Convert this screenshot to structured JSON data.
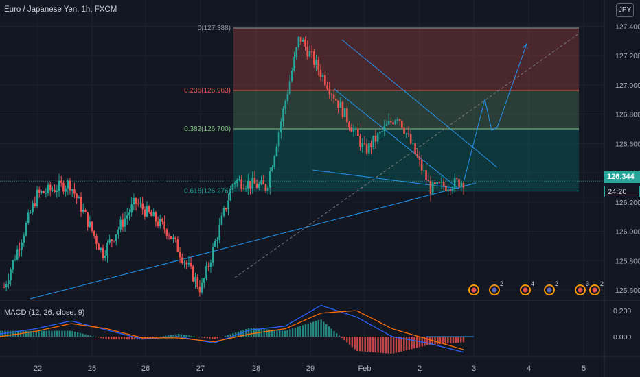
{
  "header": {
    "title": "Euro / Japanese Yen, 1h, FXCM",
    "currency": "JPY"
  },
  "price_badge": {
    "current": "126.344",
    "timer": "24:20"
  },
  "colors": {
    "background": "#131722",
    "up": "#26a69a",
    "down": "#ef5350",
    "trend": "#2196f3",
    "macd": "#2962ff",
    "signal": "#ff6d00"
  },
  "events": [
    {
      "icon": "flag-event-icon",
      "count": ""
    },
    {
      "icon": "globe-event-icon",
      "count": "2"
    },
    {
      "icon": "flag-event-icon",
      "count": "4"
    },
    {
      "icon": "globe-event-icon",
      "count": "2"
    },
    {
      "icon": "flag-event-icon",
      "count": "3"
    },
    {
      "icon": "flag-event-icon",
      "count": "2"
    }
  ],
  "chart_data": [
    {
      "type": "candlestick",
      "title": "Euro / Japanese Yen, 1h, FXCM",
      "x_tick_labels": [
        "22",
        "25",
        "26",
        "27",
        "28",
        "29",
        "Feb",
        "2",
        "3",
        "4",
        "5"
      ],
      "y_tick_labels": [
        "125.600",
        "125.800",
        "126.000",
        "126.200",
        "126.400",
        "126.600",
        "126.800",
        "127.000",
        "127.200",
        "127.400"
      ],
      "ylim": [
        125.53,
        127.58
      ],
      "current_price": 126.344,
      "fibonacci_levels": [
        {
          "label": "0(127.388)",
          "value": 127.388
        },
        {
          "label": "0.236(126.963)",
          "value": 126.963
        },
        {
          "label": "0.382(126.700)",
          "value": 126.7
        },
        {
          "label": "0.618(126.276)",
          "value": 126.276
        }
      ],
      "price_path": [
        {
          "x": "22",
          "y": 125.62
        },
        {
          "x": "22",
          "y": 126.25
        },
        {
          "x": "25",
          "y": 126.33
        },
        {
          "x": "26",
          "y": 125.85
        },
        {
          "x": "26",
          "y": 126.2
        },
        {
          "x": "27",
          "y": 126.0
        },
        {
          "x": "27",
          "y": 125.6
        },
        {
          "x": "28",
          "y": 126.35
        },
        {
          "x": "29",
          "y": 126.3
        },
        {
          "x": "29",
          "y": 127.33
        },
        {
          "x": "Feb",
          "y": 126.95
        },
        {
          "x": "2",
          "y": 126.55
        },
        {
          "x": "2",
          "y": 126.8
        },
        {
          "x": "2",
          "y": 126.29
        },
        {
          "x": "2",
          "y": 126.344
        }
      ],
      "grid": true
    },
    {
      "type": "line",
      "title": "MACD (12, 26, close, 9)",
      "y_tick_labels": [
        "0.000",
        "0.200"
      ],
      "series": [
        {
          "name": "",
          "values": [
            0.02,
            0.06,
            0.12,
            0.05,
            -0.02,
            0.0,
            -0.05,
            0.05,
            0.08,
            0.24,
            0.15,
            0.0,
            -0.05,
            -0.12
          ]
        },
        {
          "name": "",
          "values": [
            0.0,
            0.04,
            0.1,
            0.06,
            -0.01,
            -0.01,
            -0.04,
            0.02,
            0.06,
            0.18,
            0.2,
            0.06,
            -0.02,
            -0.1
          ]
        }
      ],
      "grid": true
    }
  ]
}
